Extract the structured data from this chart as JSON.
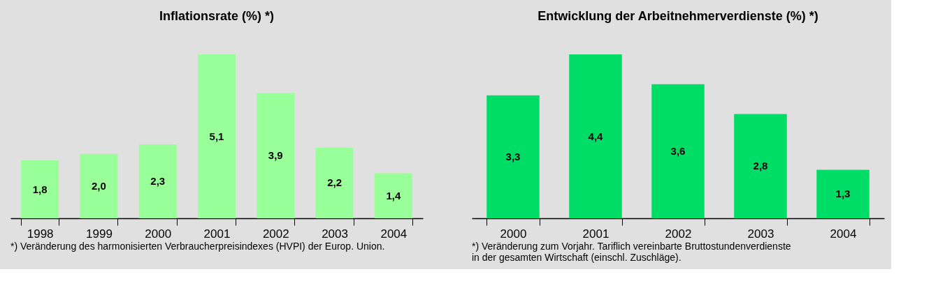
{
  "chart_data": [
    {
      "type": "bar",
      "title": "Inflationsrate (%) *)",
      "categories": [
        "1998",
        "1999",
        "2000",
        "2001",
        "2002",
        "2003",
        "2004"
      ],
      "values": [
        1.8,
        2.0,
        2.3,
        5.1,
        3.9,
        2.2,
        1.4
      ],
      "value_labels": [
        "1,8",
        "2,0",
        "2,3",
        "5,1",
        "3,9",
        "2,2",
        "1,4"
      ],
      "color": "#99ff99",
      "annotations": [
        "*) Veränderung des harmonisierten Verbraucherpreisindexes (HVPI) der Europ. Union."
      ]
    },
    {
      "type": "bar",
      "title": "Entwicklung der Arbeitnehmerverdienste (%) *)",
      "categories": [
        "2000",
        "2001",
        "2002",
        "2003",
        "2004"
      ],
      "values": [
        3.3,
        4.4,
        3.6,
        2.8,
        1.3
      ],
      "value_labels": [
        "3,3",
        "4,4",
        "3,6",
        "2,8",
        "1,3"
      ],
      "color": "#00dd66",
      "annotations": [
        "*) Veränderung zum Vorjahr. Tariflich vereinbarte Bruttostundenverdienste\n    in der gesamten Wirtschaft (einschl. Zuschläge)."
      ]
    }
  ]
}
